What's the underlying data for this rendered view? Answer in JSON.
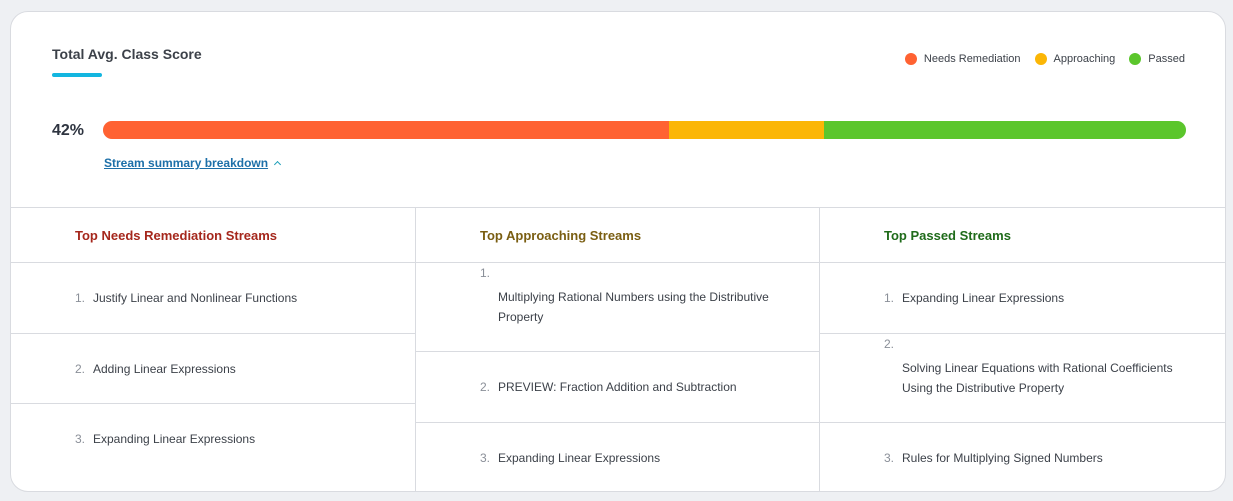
{
  "header": {
    "title": "Total Avg. Class Score"
  },
  "legend": [
    {
      "label": "Needs Remediation",
      "color": "#ff6232"
    },
    {
      "label": "Approaching",
      "color": "#fbb606"
    },
    {
      "label": "Passed",
      "color": "#5bc62c"
    }
  ],
  "score": {
    "label": "42%",
    "segments": [
      {
        "name": "Needs Remediation",
        "fraction": 0.523,
        "color": "#ff6232"
      },
      {
        "name": "Approaching",
        "fraction": 0.143,
        "color": "#fbb606"
      },
      {
        "name": "Passed",
        "fraction": 0.334,
        "color": "#5bc62c"
      }
    ]
  },
  "breakdown": {
    "label": "Stream summary breakdown"
  },
  "columns": [
    {
      "title": "Top Needs Remediation Streams",
      "title_color": "#a5271c",
      "items": [
        {
          "num": "1.",
          "text": "Justify Linear and Nonlinear Functions"
        },
        {
          "num": "2.",
          "text": "Adding Linear Expressions"
        },
        {
          "num": "3.",
          "text": "Expanding Linear Expressions"
        }
      ]
    },
    {
      "title": "Top Approaching Streams",
      "title_color": "#7a5e12",
      "items": [
        {
          "num": "1.",
          "text": "Multiplying Rational Numbers using the Distributive Property"
        },
        {
          "num": "2.",
          "text": "PREVIEW: Fraction Addition and Subtraction"
        },
        {
          "num": "3.",
          "text": "Expanding Linear Expressions"
        }
      ]
    },
    {
      "title": "Top Passed Streams",
      "title_color": "#1f6b1a",
      "items": [
        {
          "num": "1.",
          "text": "Expanding Linear Expressions"
        },
        {
          "num": "2.",
          "text": "Solving Linear Equations with Rational Coefficients Using the Distributive Property"
        },
        {
          "num": "3.",
          "text": "Rules for Multiplying Signed Numbers"
        }
      ]
    }
  ]
}
